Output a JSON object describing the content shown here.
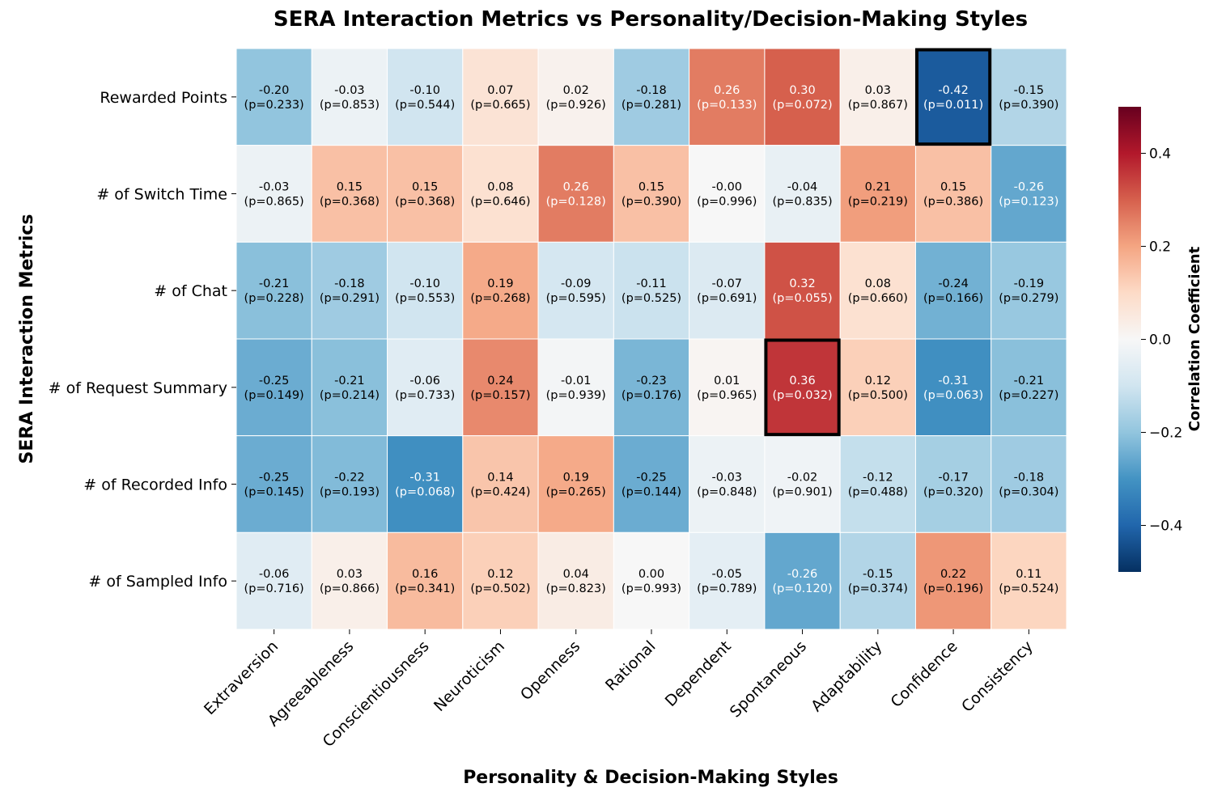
{
  "chart_data": {
    "type": "heatmap",
    "title": "SERA Interaction Metrics vs Personality/Decision-Making Styles",
    "xlabel": "Personality & Decision-Making Styles",
    "ylabel": "SERA Interaction Metrics",
    "x_categories": [
      "Extraversion",
      "Agreeableness",
      "Conscientiousness",
      "Neuroticism",
      "Openness",
      "Rational",
      "Dependent",
      "Spontaneous",
      "Adaptability",
      "Confidence",
      "Consistency"
    ],
    "y_categories": [
      "Rewarded Points",
      "# of Switch Time",
      "# of Chat",
      "# of Request Summary",
      "# of Recorded Info",
      "# of Sampled Info"
    ],
    "correlations": [
      [
        -0.2,
        -0.03,
        -0.1,
        0.07,
        0.02,
        -0.18,
        0.26,
        0.3,
        0.03,
        -0.42,
        -0.15
      ],
      [
        -0.03,
        0.15,
        0.15,
        0.08,
        0.26,
        0.15,
        -0.0,
        -0.04,
        0.21,
        0.15,
        -0.26
      ],
      [
        -0.21,
        -0.18,
        -0.1,
        0.19,
        -0.09,
        -0.11,
        -0.07,
        0.32,
        0.08,
        -0.24,
        -0.19
      ],
      [
        -0.25,
        -0.21,
        -0.06,
        0.24,
        -0.01,
        -0.23,
        0.01,
        0.36,
        0.12,
        -0.31,
        -0.21
      ],
      [
        -0.25,
        -0.22,
        -0.31,
        0.14,
        0.19,
        -0.25,
        -0.03,
        -0.02,
        -0.12,
        -0.17,
        -0.18
      ],
      [
        -0.06,
        0.03,
        0.16,
        0.12,
        0.04,
        0.0,
        -0.05,
        -0.26,
        -0.15,
        0.22,
        0.11
      ]
    ],
    "correlation_labels": [
      [
        "-0.20",
        "-0.03",
        "-0.10",
        "0.07",
        "0.02",
        "-0.18",
        "0.26",
        "0.30",
        "0.03",
        "-0.42",
        "-0.15"
      ],
      [
        "-0.03",
        "0.15",
        "0.15",
        "0.08",
        "0.26",
        "0.15",
        "-0.00",
        "-0.04",
        "0.21",
        "0.15",
        "-0.26"
      ],
      [
        "-0.21",
        "-0.18",
        "-0.10",
        "0.19",
        "-0.09",
        "-0.11",
        "-0.07",
        "0.32",
        "0.08",
        "-0.24",
        "-0.19"
      ],
      [
        "-0.25",
        "-0.21",
        "-0.06",
        "0.24",
        "-0.01",
        "-0.23",
        "0.01",
        "0.36",
        "0.12",
        "-0.31",
        "-0.21"
      ],
      [
        "-0.25",
        "-0.22",
        "-0.31",
        "0.14",
        "0.19",
        "-0.25",
        "-0.03",
        "-0.02",
        "-0.12",
        "-0.17",
        "-0.18"
      ],
      [
        "-0.06",
        "0.03",
        "0.16",
        "0.12",
        "0.04",
        "0.00",
        "-0.05",
        "-0.26",
        "-0.15",
        "0.22",
        "0.11"
      ]
    ],
    "p_value_labels": [
      [
        "(p=0.233)",
        "(p=0.853)",
        "(p=0.544)",
        "(p=0.665)",
        "(p=0.926)",
        "(p=0.281)",
        "(p=0.133)",
        "(p=0.072)",
        "(p=0.867)",
        "(p=0.011)",
        "(p=0.390)"
      ],
      [
        "(p=0.865)",
        "(p=0.368)",
        "(p=0.368)",
        "(p=0.646)",
        "(p=0.128)",
        "(p=0.390)",
        "(p=0.996)",
        "(p=0.835)",
        "(p=0.219)",
        "(p=0.386)",
        "(p=0.123)"
      ],
      [
        "(p=0.228)",
        "(p=0.291)",
        "(p=0.553)",
        "(p=0.268)",
        "(p=0.595)",
        "(p=0.525)",
        "(p=0.691)",
        "(p=0.055)",
        "(p=0.660)",
        "(p=0.166)",
        "(p=0.279)"
      ],
      [
        "(p=0.149)",
        "(p=0.214)",
        "(p=0.733)",
        "(p=0.157)",
        "(p=0.939)",
        "(p=0.176)",
        "(p=0.965)",
        "(p=0.032)",
        "(p=0.500)",
        "(p=0.063)",
        "(p=0.227)"
      ],
      [
        "(p=0.145)",
        "(p=0.193)",
        "(p=0.068)",
        "(p=0.424)",
        "(p=0.265)",
        "(p=0.144)",
        "(p=0.848)",
        "(p=0.901)",
        "(p=0.488)",
        "(p=0.320)",
        "(p=0.304)"
      ],
      [
        "(p=0.716)",
        "(p=0.866)",
        "(p=0.341)",
        "(p=0.502)",
        "(p=0.823)",
        "(p=0.993)",
        "(p=0.789)",
        "(p=0.120)",
        "(p=0.374)",
        "(p=0.196)",
        "(p=0.524)"
      ]
    ],
    "highlighted_cells": [
      {
        "row": "Rewarded Points",
        "col": "Confidence"
      },
      {
        "row": "# of Request Summary",
        "col": "Spontaneous"
      }
    ],
    "colorbar": {
      "label": "Correlation Coefficient",
      "range": [
        -0.5,
        0.5
      ],
      "ticks": [
        -0.4,
        -0.2,
        0.0,
        0.2,
        0.4
      ],
      "tick_labels": [
        "−0.4",
        "−0.2",
        "0.0",
        "0.2",
        "0.4"
      ],
      "colormap": "RdBu_r"
    },
    "colormap_stops": [
      "#053061",
      "#2166ac",
      "#4393c3",
      "#92c5de",
      "#d1e5f0",
      "#f7f7f7",
      "#fddbc7",
      "#f4a582",
      "#d6604d",
      "#b2182b",
      "#67001f"
    ]
  }
}
